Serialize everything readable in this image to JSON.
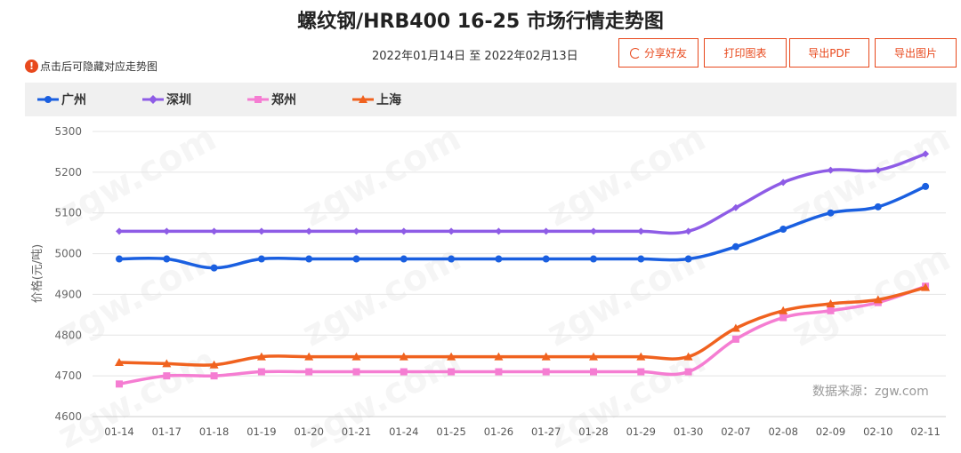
{
  "header": {
    "title": "螺纹钢/HRB400 16-25 市场行情走势图",
    "hint": "点击后可隐藏对应走势图",
    "hint_icon": "exclamation-icon",
    "date_range": "2022年01月14日 至 2022年02月13日"
  },
  "toolbar": {
    "share_label": "分享好友",
    "print_label": "打印图表",
    "export_pdf_label": "导出PDF",
    "export_image_label": "导出图片"
  },
  "source": "数据来源：zgw.com",
  "watermark": "zgw.com",
  "chart_data": {
    "type": "line",
    "title": "螺纹钢/HRB400 16-25 市场行情走势图",
    "ylabel": "价格(元/吨)",
    "xlabel": "",
    "ylim": [
      4600,
      5300
    ],
    "yticks": [
      4600,
      4700,
      4800,
      4900,
      5000,
      5100,
      5200,
      5300
    ],
    "grid": true,
    "legend_position": "top",
    "categories": [
      "01-14",
      "01-17",
      "01-18",
      "01-19",
      "01-20",
      "01-21",
      "01-24",
      "01-25",
      "01-26",
      "01-27",
      "01-28",
      "01-29",
      "01-30",
      "02-07",
      "02-08",
      "02-09",
      "02-10",
      "02-11"
    ],
    "series": [
      {
        "name": "广州",
        "color": "#1a5fe0",
        "marker": "circle",
        "values": [
          4987,
          4987,
          4965,
          4987,
          4987,
          4987,
          4987,
          4987,
          4987,
          4987,
          4987,
          4987,
          4987,
          5017,
          5060,
          5100,
          5115,
          5165
        ]
      },
      {
        "name": "深圳",
        "color": "#8e5ce6",
        "marker": "diamond",
        "values": [
          5055,
          5055,
          5055,
          5055,
          5055,
          5055,
          5055,
          5055,
          5055,
          5055,
          5055,
          5055,
          5055,
          5113,
          5175,
          5205,
          5205,
          5245
        ]
      },
      {
        "name": "郑州",
        "color": "#f57dd2",
        "marker": "square",
        "values": [
          4680,
          4700,
          4700,
          4710,
          4710,
          4710,
          4710,
          4710,
          4710,
          4710,
          4710,
          4710,
          4710,
          4790,
          4843,
          4860,
          4880,
          4920
        ]
      },
      {
        "name": "上海",
        "color": "#f0621f",
        "marker": "triangle",
        "values": [
          4733,
          4730,
          4727,
          4747,
          4747,
          4747,
          4747,
          4747,
          4747,
          4747,
          4747,
          4747,
          4747,
          4817,
          4860,
          4877,
          4887,
          4917
        ]
      }
    ]
  }
}
